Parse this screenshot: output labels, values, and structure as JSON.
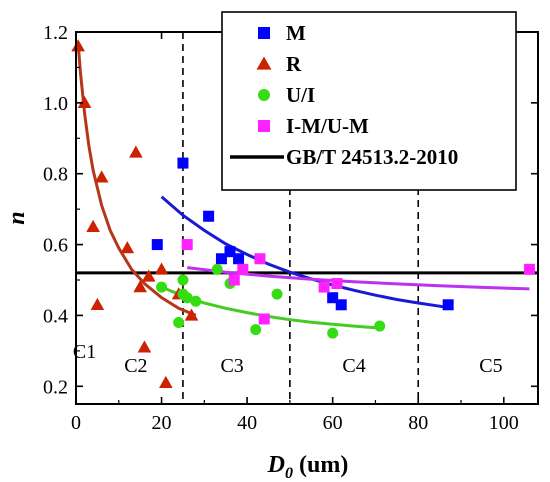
{
  "chart_data": {
    "type": "scatter",
    "xlabel_main": "D",
    "xlabel_sub": "0",
    "xlabel_unit": " (um)",
    "ylabel": "n",
    "xlim": [
      0,
      108
    ],
    "ylim": [
      0.15,
      1.2
    ],
    "x_ticks": [
      0,
      20,
      40,
      60,
      80,
      100
    ],
    "y_ticks": [
      0.2,
      0.4,
      0.6,
      0.8,
      1.0,
      1.2
    ],
    "x_tick_labels": [
      "0",
      "20",
      "40",
      "60",
      "80",
      "100"
    ],
    "y_tick_labels": [
      "0.2",
      "0.4",
      "0.6",
      "0.8",
      "1.0",
      "1.2"
    ],
    "grid": false,
    "legend_position": "top-right",
    "series": [
      {
        "name": "M",
        "marker": "square",
        "color": "#0000ff",
        "points": [
          [
            19,
            0.6
          ],
          [
            25,
            0.83
          ],
          [
            31,
            0.68
          ],
          [
            34,
            0.56
          ],
          [
            36,
            0.58
          ],
          [
            38,
            0.56
          ],
          [
            60,
            0.45
          ],
          [
            62,
            0.43
          ],
          [
            87,
            0.43
          ]
        ],
        "fit": [
          [
            20,
            0.735
          ],
          [
            25,
            0.683
          ],
          [
            30,
            0.64
          ],
          [
            35,
            0.602
          ],
          [
            40,
            0.572
          ],
          [
            45,
            0.545
          ],
          [
            50,
            0.522
          ],
          [
            55,
            0.503
          ],
          [
            60,
            0.486
          ],
          [
            65,
            0.471
          ],
          [
            70,
            0.457
          ],
          [
            75,
            0.445
          ],
          [
            80,
            0.435
          ],
          [
            85,
            0.426
          ],
          [
            88,
            0.42
          ]
        ],
        "fit_color": "#1a1ad6"
      },
      {
        "name": "R",
        "marker": "triangle",
        "color": "#cc2200",
        "points": [
          [
            0.5,
            1.16
          ],
          [
            2,
            1.0
          ],
          [
            4,
            0.65
          ],
          [
            5,
            0.43
          ],
          [
            6,
            0.79
          ],
          [
            12,
            0.59
          ],
          [
            14,
            0.86
          ],
          [
            15,
            0.48
          ],
          [
            16,
            0.31
          ],
          [
            17,
            0.51
          ],
          [
            20,
            0.53
          ],
          [
            21,
            0.21
          ],
          [
            24,
            0.46
          ],
          [
            27,
            0.4
          ]
        ],
        "fit": [
          [
            0.5,
            1.17
          ],
          [
            1,
            1.09
          ],
          [
            2,
            0.97
          ],
          [
            3,
            0.88
          ],
          [
            4,
            0.81
          ],
          [
            6,
            0.71
          ],
          [
            8,
            0.64
          ],
          [
            10,
            0.59
          ],
          [
            13,
            0.53
          ],
          [
            16,
            0.49
          ],
          [
            20,
            0.45
          ],
          [
            24,
            0.42
          ],
          [
            28,
            0.4
          ]
        ],
        "fit_color": "#b5361a"
      },
      {
        "name": "U/I",
        "marker": "circle",
        "color": "#33dd11",
        "points": [
          [
            20,
            0.48
          ],
          [
            24,
            0.38
          ],
          [
            25,
            0.5
          ],
          [
            25,
            0.46
          ],
          [
            26,
            0.45
          ],
          [
            28,
            0.44
          ],
          [
            33,
            0.53
          ],
          [
            36,
            0.49
          ],
          [
            42,
            0.36
          ],
          [
            47,
            0.46
          ],
          [
            60,
            0.35
          ],
          [
            71,
            0.37
          ]
        ],
        "fit": [
          [
            20,
            0.48
          ],
          [
            25,
            0.455
          ],
          [
            30,
            0.435
          ],
          [
            35,
            0.42
          ],
          [
            40,
            0.408
          ],
          [
            45,
            0.397
          ],
          [
            50,
            0.388
          ],
          [
            55,
            0.381
          ],
          [
            60,
            0.375
          ],
          [
            65,
            0.37
          ],
          [
            70,
            0.365
          ]
        ],
        "fit_color": "#44cc22"
      },
      {
        "name": "I-M/U-M",
        "marker": "square",
        "color": "#ff22ff",
        "points": [
          [
            26,
            0.6
          ],
          [
            37,
            0.5
          ],
          [
            39,
            0.53
          ],
          [
            43,
            0.56
          ],
          [
            44,
            0.39
          ],
          [
            58,
            0.48
          ],
          [
            61,
            0.49
          ],
          [
            106,
            0.53
          ]
        ],
        "fit": [
          [
            26,
            0.535
          ],
          [
            35,
            0.522
          ],
          [
            45,
            0.511
          ],
          [
            55,
            0.502
          ],
          [
            65,
            0.495
          ],
          [
            75,
            0.489
          ],
          [
            85,
            0.484
          ],
          [
            95,
            0.479
          ],
          [
            106,
            0.475
          ]
        ],
        "fit_color": "#bb33ee"
      }
    ],
    "reference_line": {
      "name": "GB/T 24513.2-2010",
      "y": 0.52,
      "color": "#000000"
    },
    "boundaries": [
      25,
      50,
      80
    ],
    "regions": [
      {
        "label": "C1",
        "x": 2,
        "y": 0.28
      },
      {
        "label": "C2",
        "x": 14,
        "y": 0.24
      },
      {
        "label": "C3",
        "x": 36.5,
        "y": 0.24
      },
      {
        "label": "C4",
        "x": 65,
        "y": 0.24
      },
      {
        "label": "C5",
        "x": 97,
        "y": 0.24
      }
    ]
  }
}
